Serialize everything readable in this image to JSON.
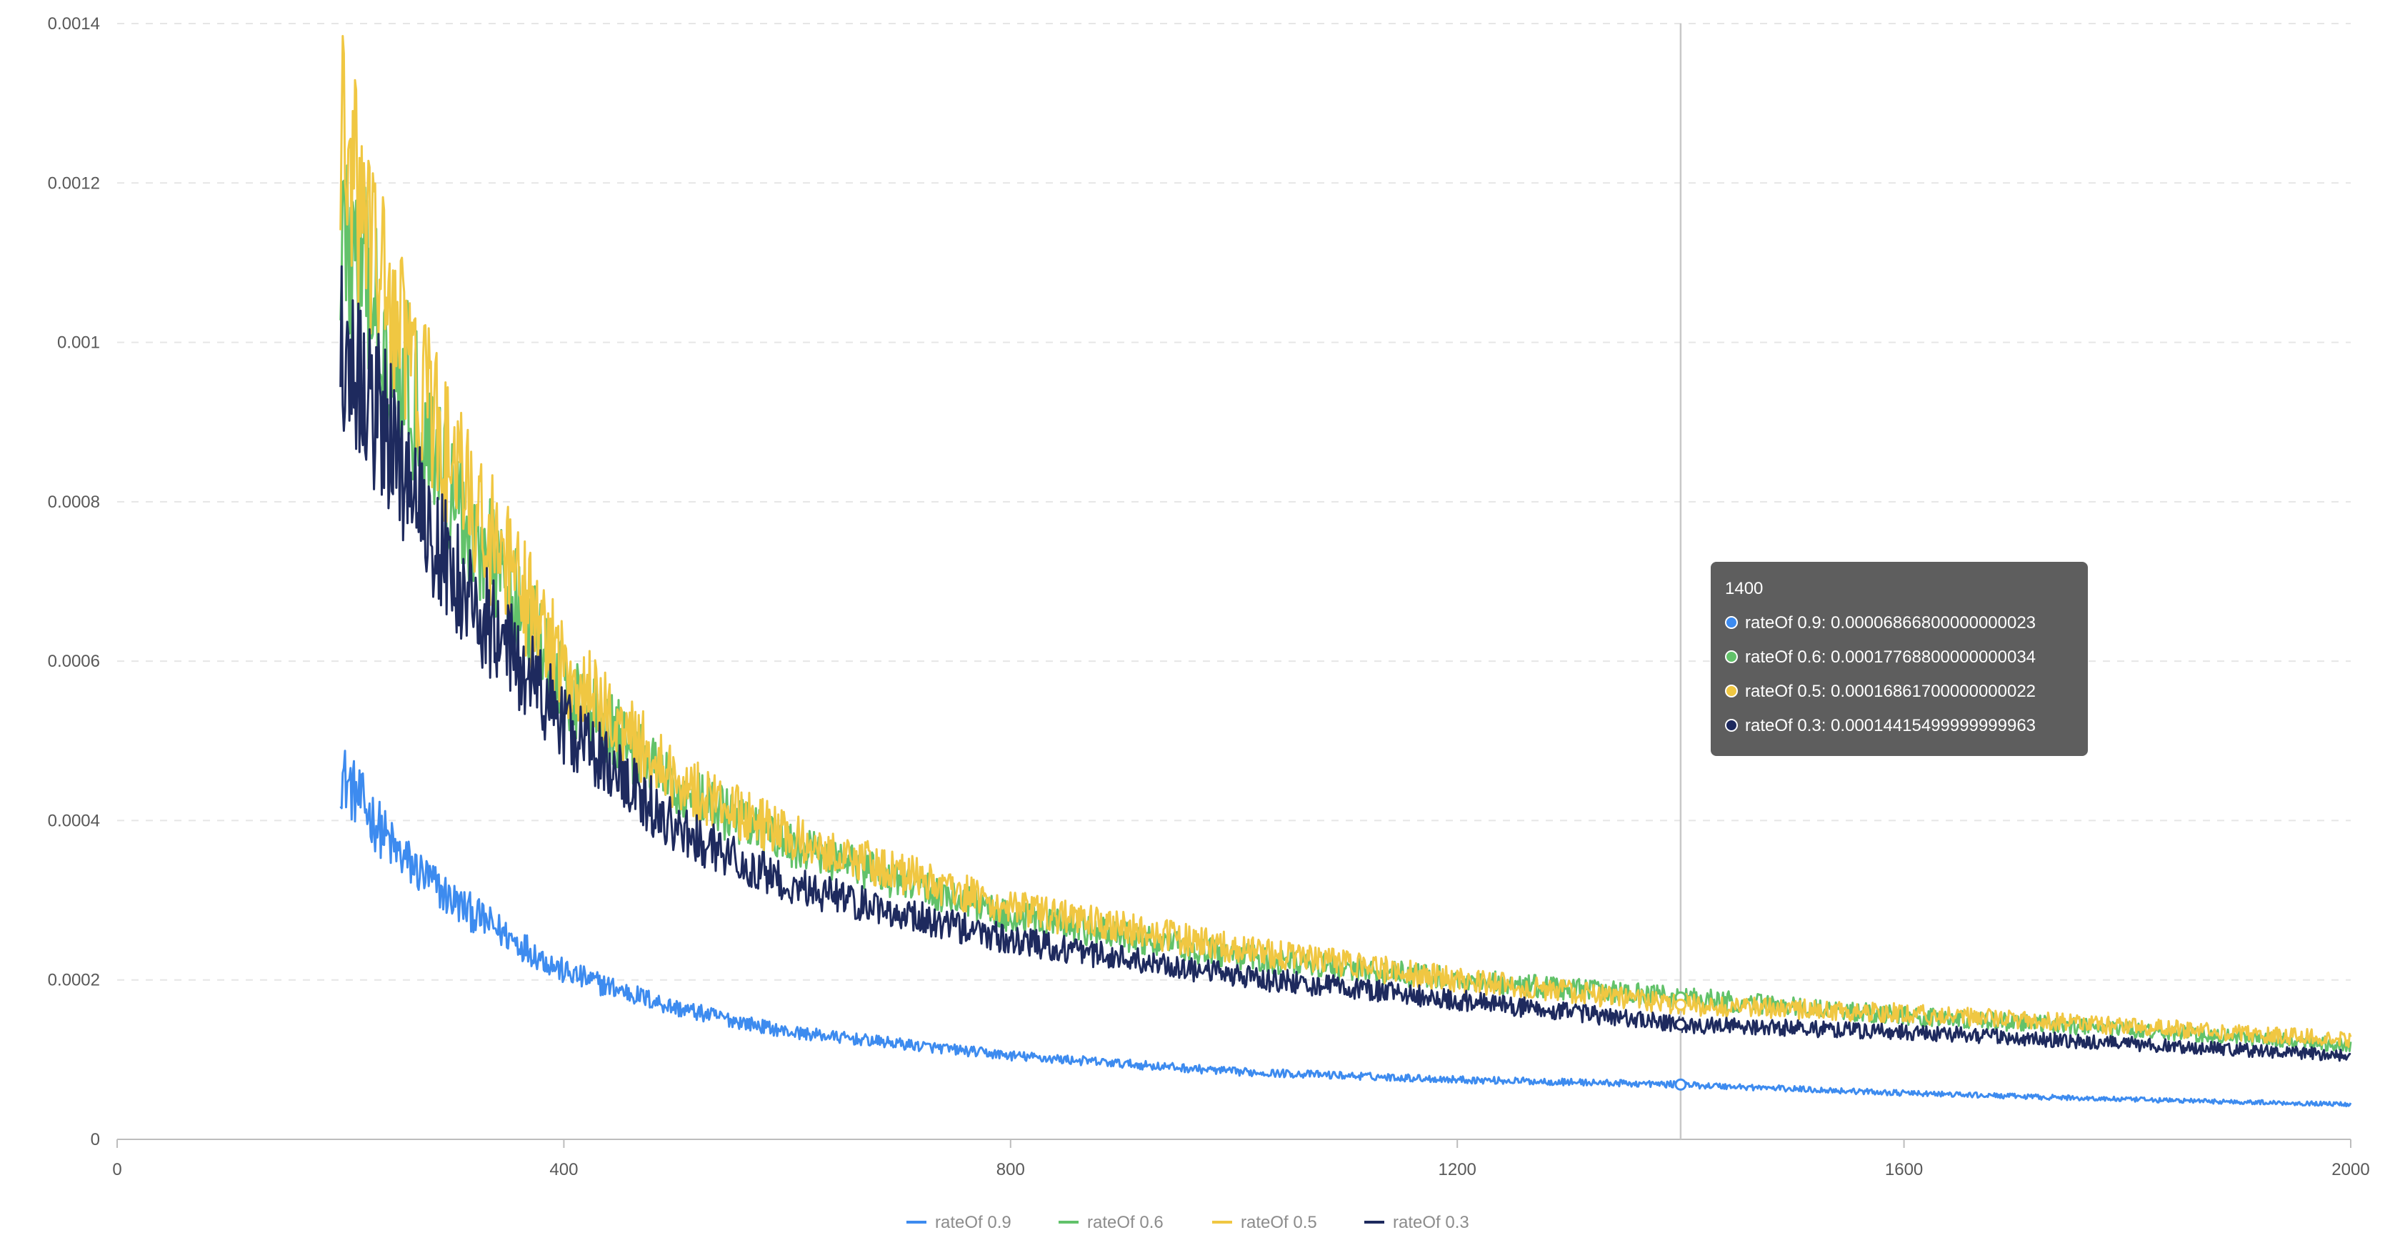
{
  "chart_data": {
    "type": "line",
    "xlim": [
      0,
      2000
    ],
    "ylim": [
      0,
      0.0014
    ],
    "x_ticks": [
      "0",
      "400",
      "800",
      "1200",
      "1600",
      "2000"
    ],
    "y_ticks": [
      "0",
      "0.0002",
      "0.0004",
      "0.0006",
      "0.0008",
      "0.001",
      "0.0012",
      "0.0014"
    ],
    "grid": true,
    "legend_position": "bottom-center",
    "x_start": 200,
    "x_end": 2000,
    "series": [
      {
        "name": "rateOf 0.9",
        "color": "#3d8bef",
        "x": [
          200,
          250,
          300,
          400,
          500,
          600,
          800,
          1000,
          1200,
          1400,
          1600,
          1800,
          2000
        ],
        "values": [
          0.00046,
          0.00036,
          0.0003,
          0.00021,
          0.000165,
          0.000135,
          0.000105,
          8.5e-05,
          7.5e-05,
          6.87e-05,
          5.8e-05,
          5e-05,
          4.4e-05
        ],
        "noise": 0.06
      },
      {
        "name": "rateOf 0.6",
        "color": "#62c26a",
        "x": [
          200,
          250,
          300,
          400,
          500,
          600,
          800,
          1000,
          1200,
          1400,
          1600,
          1800,
          2000
        ],
        "values": [
          0.00114,
          0.00098,
          0.00081,
          0.00057,
          0.00044,
          0.00037,
          0.00028,
          0.00023,
          0.0002,
          0.000178,
          0.000155,
          0.000138,
          0.000118
        ],
        "noise": 0.075
      },
      {
        "name": "rateOf 0.5",
        "color": "#f0c742",
        "x": [
          200,
          250,
          300,
          400,
          500,
          600,
          800,
          1000,
          1200,
          1400,
          1600,
          1800,
          2000
        ],
        "values": [
          0.00125,
          0.00102,
          0.00084,
          0.00059,
          0.00045,
          0.00038,
          0.00029,
          0.00024,
          0.0002,
          0.000169,
          0.000158,
          0.000142,
          0.000125
        ],
        "noise": 0.08
      },
      {
        "name": "rateOf 0.3",
        "color": "#1e2a5e",
        "x": [
          200,
          250,
          300,
          400,
          500,
          600,
          800,
          1000,
          1200,
          1400,
          1600,
          1800,
          2000
        ],
        "values": [
          0.00101,
          0.00086,
          0.00071,
          0.00052,
          0.00039,
          0.00032,
          0.00025,
          0.000205,
          0.000175,
          0.000144,
          0.000135,
          0.00012,
          0.000105
        ],
        "noise": 0.075
      }
    ],
    "tooltip": {
      "x_value": 1400,
      "title": "1400",
      "rows": [
        {
          "label": "rateOf 0.9: 0.00006866800000000023",
          "y": 6.87e-05,
          "color": "#3d8bef"
        },
        {
          "label": "rateOf 0.6: 0.00017768800000000034",
          "y": 0.000178,
          "color": "#62c26a"
        },
        {
          "label": "rateOf 0.5: 0.00016861700000000022",
          "y": 0.000169,
          "color": "#f0c742"
        },
        {
          "label": "rateOf 0.3: 0.00014415499999999963",
          "y": 0.000144,
          "color": "#1e2a5e"
        }
      ]
    }
  }
}
